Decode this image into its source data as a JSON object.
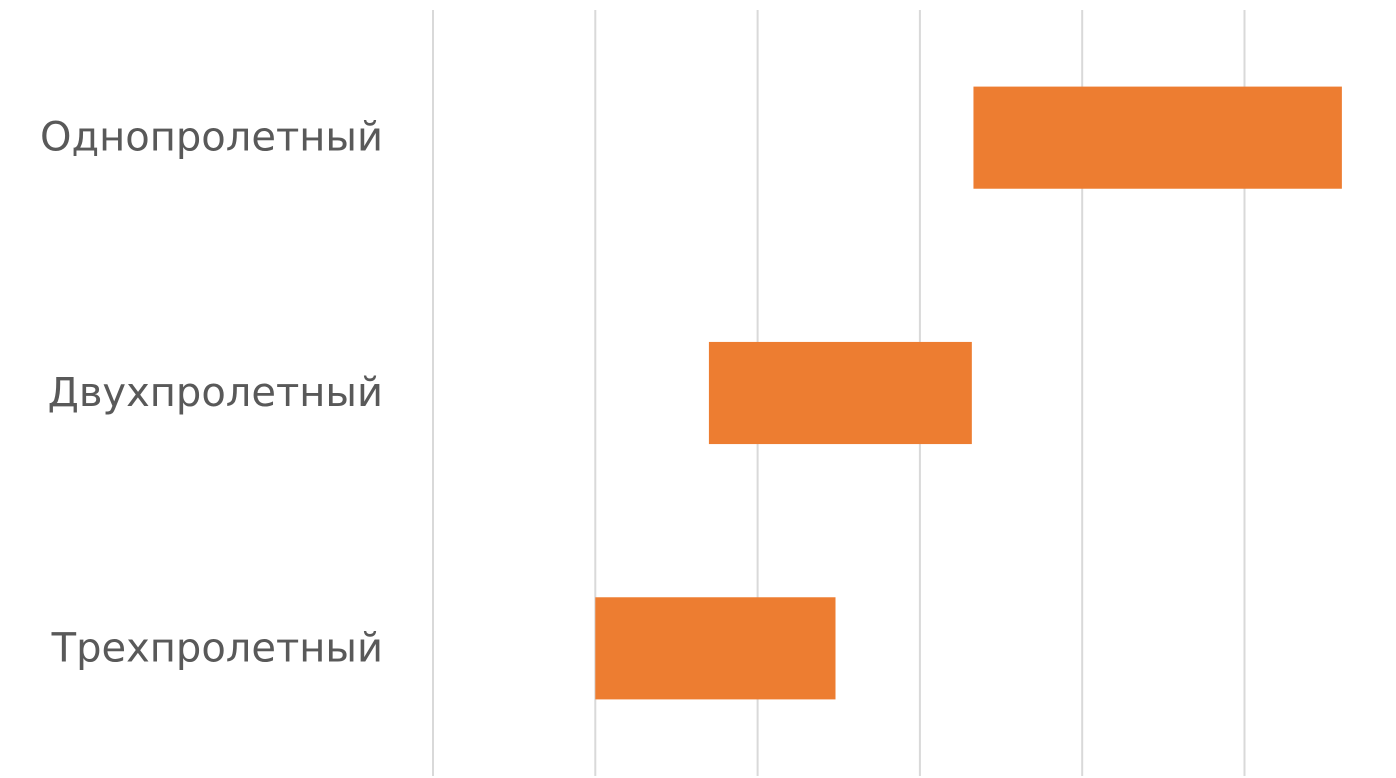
{
  "chart_data": {
    "type": "bar",
    "orientation": "horizontal",
    "subtype": "floating",
    "categories": [
      "Однопролетный",
      "Двухпролетный",
      "Трехпролетный"
    ],
    "series": [
      {
        "color": "#ED7D31",
        "start": [
          3.33,
          1.7,
          1.0
        ],
        "end": [
          5.6,
          3.32,
          2.48
        ]
      }
    ],
    "xlim": [
      0,
      5.8
    ],
    "x_gridlines": [
      0,
      1,
      2,
      3,
      4,
      5
    ],
    "x_tick_labels_shown": false,
    "grid": true,
    "legend": "none"
  }
}
